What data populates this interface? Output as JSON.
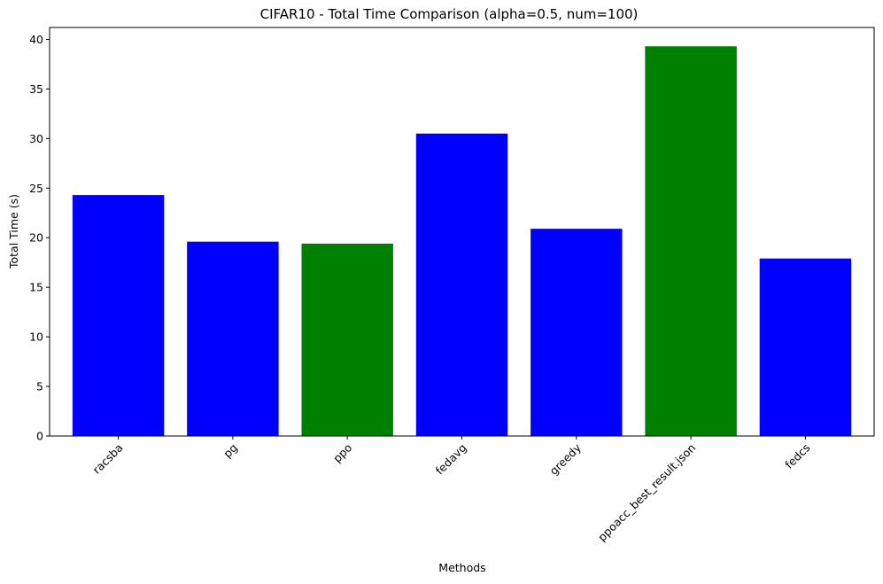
{
  "chart_data": {
    "type": "bar",
    "title": "CIFAR10 - Total Time Comparison (alpha=0.5, num=100)",
    "xlabel": "Methods",
    "ylabel": "Total Time (s)",
    "categories": [
      "racsba",
      "pg",
      "ppo",
      "fedavg",
      "greedy",
      "ppoacc_best_result.json",
      "fedcs"
    ],
    "values": [
      24.3,
      19.6,
      19.4,
      30.5,
      20.9,
      39.3,
      17.9
    ],
    "bar_colors": [
      "#0000ff",
      "#0000ff",
      "#008000",
      "#0000ff",
      "#0000ff",
      "#008000",
      "#0000ff"
    ],
    "ylim": [
      0,
      41.2
    ],
    "yticks": [
      0,
      5,
      10,
      15,
      20,
      25,
      30,
      35,
      40
    ],
    "grid": false,
    "legend": "none"
  }
}
